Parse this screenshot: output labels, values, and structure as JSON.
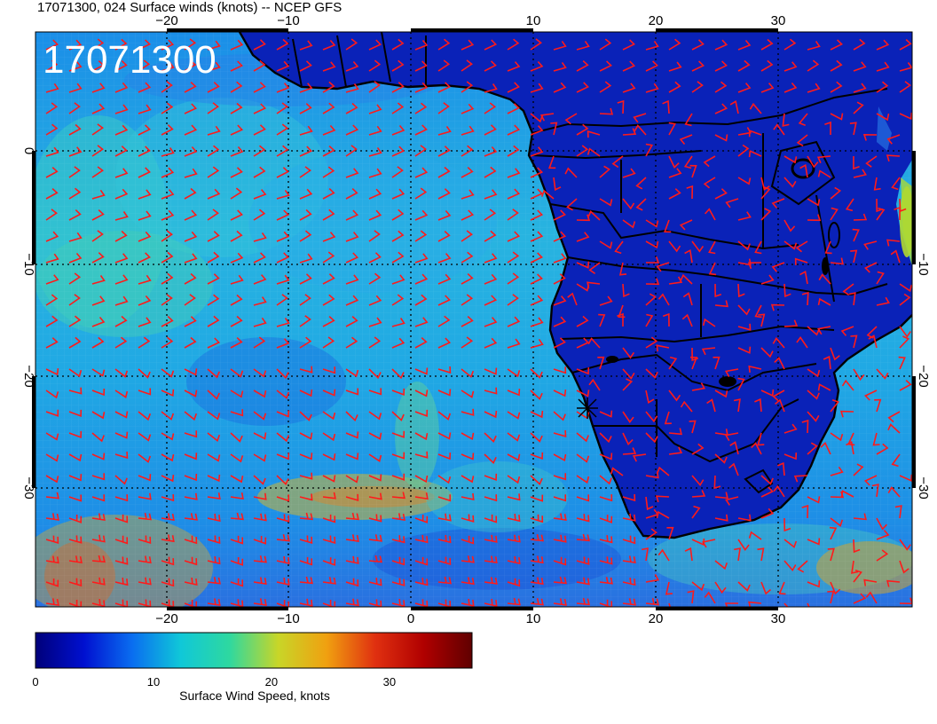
{
  "header": {
    "title": "17071300, 024 Surface winds (knots) -- NCEP GFS"
  },
  "map": {
    "stamp": "17071300",
    "lon_labels": [
      "−20",
      "−10",
      "0",
      "10",
      "20",
      "30"
    ],
    "lat_labels_left": [
      "0",
      "−10",
      "−20",
      "−30"
    ],
    "lat_labels_right": [
      "−10",
      "−20",
      "−30"
    ],
    "barb_color": "#ff1a1a",
    "coast_color": "#000000"
  },
  "colorbar": {
    "label": "Surface Wind Speed, knots",
    "tick_labels": [
      "0",
      "10",
      "20",
      "30"
    ],
    "min": 0,
    "max": 37,
    "ticks": [
      0,
      10,
      20,
      30
    ],
    "colors": [
      "#00007a",
      "#0010d0",
      "#0a6ef0",
      "#10c8d8",
      "#2ed8a0",
      "#c8d628",
      "#f0a010",
      "#e03010",
      "#b00000",
      "#600000"
    ]
  }
}
